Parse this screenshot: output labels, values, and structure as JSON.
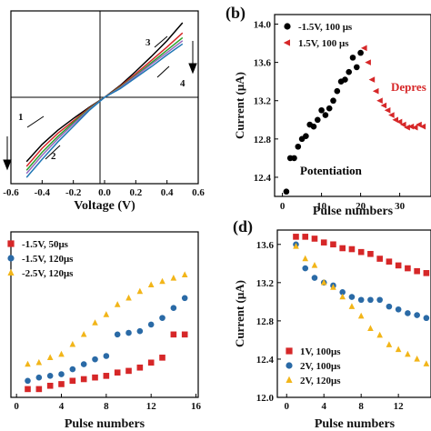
{
  "chart_data": [
    {
      "id": "a",
      "type": "line",
      "xlabel": "Voltage (V)",
      "ylabel": "",
      "xlim": [
        -0.6,
        0.6
      ],
      "xticks": [
        "-0.6",
        "-0.4",
        "-0.2",
        "0.0",
        "0.2",
        "0.4",
        "0.6"
      ],
      "curve_labels": [
        "1",
        "2",
        "3",
        "4"
      ],
      "series": [
        {
          "color": "#000000",
          "x": [
            -0.5,
            -0.4,
            -0.3,
            -0.2,
            -0.1,
            0.0,
            0.1,
            0.2,
            0.3,
            0.4,
            0.5
          ],
          "y": [
            -0.82,
            -0.6,
            -0.42,
            -0.27,
            -0.13,
            0.0,
            0.15,
            0.33,
            0.52,
            0.72,
            0.95
          ]
        },
        {
          "color": "#d62728",
          "x": [
            -0.5,
            -0.4,
            -0.3,
            -0.2,
            -0.1,
            0.0,
            0.1,
            0.2,
            0.3,
            0.4,
            0.5
          ],
          "y": [
            -0.88,
            -0.65,
            -0.46,
            -0.3,
            -0.14,
            0.0,
            0.14,
            0.3,
            0.47,
            0.64,
            0.82
          ]
        },
        {
          "color": "#2ca02c",
          "x": [
            -0.5,
            -0.4,
            -0.3,
            -0.2,
            -0.1,
            0.0,
            0.1,
            0.2,
            0.3,
            0.4,
            0.5
          ],
          "y": [
            -0.93,
            -0.7,
            -0.5,
            -0.32,
            -0.15,
            0.0,
            0.13,
            0.28,
            0.44,
            0.6,
            0.76
          ]
        },
        {
          "color": "#9467bd",
          "x": [
            -0.5,
            -0.4,
            -0.3,
            -0.2,
            -0.1,
            0.0,
            0.1,
            0.2,
            0.3,
            0.4,
            0.5
          ],
          "y": [
            -0.97,
            -0.74,
            -0.53,
            -0.34,
            -0.16,
            0.0,
            0.12,
            0.27,
            0.42,
            0.57,
            0.72
          ]
        },
        {
          "color": "#1f77b4",
          "x": [
            -0.5,
            -0.4,
            -0.3,
            -0.2,
            -0.1,
            0.0,
            0.1,
            0.2,
            0.3,
            0.4,
            0.5
          ],
          "y": [
            -1.02,
            -0.79,
            -0.57,
            -0.37,
            -0.17,
            0.0,
            0.11,
            0.25,
            0.39,
            0.54,
            0.68
          ]
        }
      ]
    },
    {
      "id": "b",
      "type": "scatter",
      "xlabel": "Pulse numbers",
      "ylabel": "Current (μA)",
      "xlim": [
        -2,
        38
      ],
      "ylim": [
        12.2,
        14.1
      ],
      "xticks": [
        0,
        10,
        20,
        30
      ],
      "yticks": [
        "12.4",
        "12.8",
        "13.2",
        "13.6",
        "14.0"
      ],
      "annotations": [
        "Potentiation",
        "Depres"
      ],
      "series": [
        {
          "name": "-1.5V, 100 μs",
          "color": "#000000",
          "marker": "circle",
          "x": [
            1,
            2,
            3,
            4,
            5,
            6,
            7,
            8,
            9,
            10,
            11,
            12,
            13,
            14,
            15,
            16,
            17,
            18,
            19,
            20
          ],
          "y": [
            12.25,
            12.6,
            12.6,
            12.72,
            12.8,
            12.83,
            12.95,
            12.93,
            13.0,
            13.1,
            13.05,
            13.12,
            13.2,
            13.3,
            13.4,
            13.42,
            13.5,
            13.65,
            13.55,
            13.7
          ]
        },
        {
          "name": "1.5V, 100 μs",
          "color": "#d62728",
          "marker": "triangle-left",
          "x": [
            21,
            22,
            23,
            24,
            25,
            26,
            27,
            28,
            29,
            30,
            31,
            32,
            33,
            34,
            35,
            36
          ],
          "y": [
            13.75,
            13.6,
            13.42,
            13.3,
            13.2,
            13.15,
            13.1,
            13.05,
            13.0,
            12.98,
            12.95,
            12.92,
            12.93,
            12.92,
            12.95,
            12.93
          ]
        }
      ]
    },
    {
      "id": "c",
      "type": "scatter",
      "xlabel": "Pulse numbers",
      "ylabel": "",
      "xlim": [
        -0.5,
        16.2
      ],
      "ylim": [
        0,
        1
      ],
      "xticks": [
        0,
        4,
        8,
        12,
        16
      ],
      "series": [
        {
          "name": "-1.5V, 50μs",
          "color": "#d62728",
          "marker": "square",
          "x": [
            1,
            2,
            3,
            4,
            5,
            6,
            7,
            8,
            9,
            10,
            11,
            12,
            13,
            14,
            15
          ],
          "y": [
            0.05,
            0.05,
            0.07,
            0.08,
            0.1,
            0.11,
            0.12,
            0.13,
            0.15,
            0.16,
            0.18,
            0.21,
            0.24,
            0.38,
            0.38
          ]
        },
        {
          "name": "-1.5V, 120μs",
          "color": "#2a6aa6",
          "marker": "circle",
          "x": [
            1,
            2,
            3,
            4,
            5,
            6,
            7,
            8,
            9,
            10,
            11,
            12,
            13,
            14,
            15
          ],
          "y": [
            0.1,
            0.12,
            0.13,
            0.14,
            0.17,
            0.2,
            0.23,
            0.25,
            0.38,
            0.39,
            0.4,
            0.44,
            0.48,
            0.54,
            0.6
          ]
        },
        {
          "name": "-2.5V,  120μs",
          "color": "#f2b519",
          "marker": "triangle",
          "x": [
            1,
            2,
            3,
            4,
            5,
            6,
            7,
            8,
            9,
            10,
            11,
            12,
            13,
            14,
            15
          ],
          "y": [
            0.2,
            0.21,
            0.24,
            0.26,
            0.32,
            0.38,
            0.45,
            0.5,
            0.56,
            0.6,
            0.64,
            0.68,
            0.7,
            0.72,
            0.74
          ]
        }
      ]
    },
    {
      "id": "d",
      "type": "scatter",
      "xlabel": "Pulse numbers",
      "ylabel": "Current (μA)",
      "xlim": [
        -1,
        15.5
      ],
      "ylim": [
        12.0,
        13.75
      ],
      "xticks": [
        0,
        4,
        8,
        12
      ],
      "yticks": [
        "12.0",
        "12.4",
        "12.8",
        "13.2",
        "13.6"
      ],
      "series": [
        {
          "name": "1V, 100μs",
          "color": "#d62728",
          "marker": "square",
          "x": [
            1,
            2,
            3,
            4,
            5,
            6,
            7,
            8,
            9,
            10,
            11,
            12,
            13,
            14,
            15
          ],
          "y": [
            13.68,
            13.68,
            13.66,
            13.62,
            13.6,
            13.56,
            13.55,
            13.52,
            13.5,
            13.45,
            13.42,
            13.38,
            13.35,
            13.32,
            13.3
          ]
        },
        {
          "name": "2V, 100μs",
          "color": "#2a6aa6",
          "marker": "circle",
          "x": [
            1,
            2,
            3,
            4,
            5,
            6,
            7,
            8,
            9,
            10,
            11,
            12,
            13,
            14,
            15
          ],
          "y": [
            13.6,
            13.35,
            13.25,
            13.2,
            13.17,
            13.1,
            13.05,
            13.02,
            13.02,
            13.02,
            12.95,
            12.92,
            12.88,
            12.86,
            12.83
          ]
        },
        {
          "name": "2V, 120μs",
          "color": "#f2b519",
          "marker": "triangle",
          "x": [
            1,
            2,
            3,
            4,
            5,
            6,
            7,
            8,
            9,
            10,
            11,
            12,
            13,
            14,
            15
          ],
          "y": [
            13.58,
            13.45,
            13.38,
            13.2,
            13.15,
            13.05,
            12.95,
            12.85,
            12.72,
            12.65,
            12.55,
            12.5,
            12.45,
            12.4,
            12.35
          ]
        }
      ]
    }
  ],
  "panel_labels": [
    "(b)",
    "(d)"
  ]
}
